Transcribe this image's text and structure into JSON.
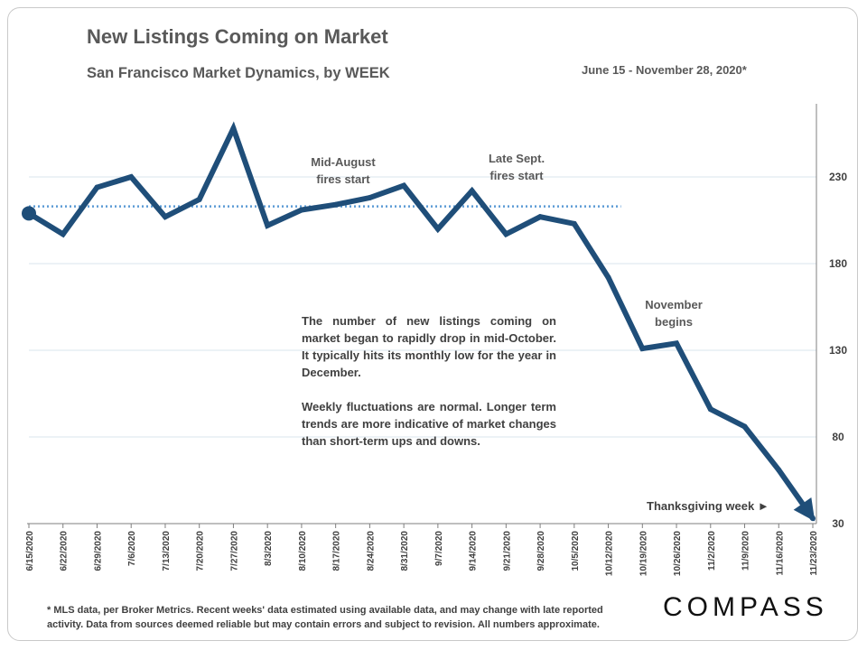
{
  "title": "New Listings Coming on Market",
  "subtitle": "San Francisco Market Dynamics, by WEEK",
  "date_range": "June 15 - November 28, 2020*",
  "annotations": {
    "aug_fires": [
      "Mid-August",
      "fires start"
    ],
    "sept_fires": [
      "Late Sept.",
      "fires start"
    ],
    "november": [
      "November",
      "begins"
    ],
    "thanksgiving": "Thanksgiving week ►"
  },
  "note": {
    "p1": "The number of new listings coming on market began to rapidly drop in mid-October. It typically hits its monthly low for the year in December.",
    "p2": "Weekly fluctuations are normal. Longer term trends are more indicative of market changes than short-term ups and downs."
  },
  "footnote": {
    "line1": "* MLS data, per Broker Metrics. Recent weeks' data estimated using available data, and may change with late reported",
    "line2": "activity. Data from sources deemed reliable but may contain errors and subject to revision. All numbers approximate."
  },
  "logo": "COMPASS",
  "colors": {
    "line": "#1f4e79",
    "trend": "#5b9bd5",
    "grid": "#d9e4ee"
  },
  "chart_data": {
    "type": "line",
    "x": [
      "6/15/2020",
      "6/22/2020",
      "6/29/2020",
      "7/6/2020",
      "7/13/2020",
      "7/20/2020",
      "7/27/2020",
      "8/3/2020",
      "8/10/2020",
      "8/17/2020",
      "8/24/2020",
      "8/31/2020",
      "9/7/2020",
      "9/14/2020",
      "9/21/2020",
      "9/28/2020",
      "10/5/2020",
      "10/12/2020",
      "10/19/2020",
      "10/26/2020",
      "11/2/2020",
      "11/9/2020",
      "11/16/2020",
      "11/23/2020"
    ],
    "series": [
      {
        "values": [
          209,
          197,
          224,
          230,
          207,
          217,
          258,
          202,
          211,
          214,
          218,
          225,
          200,
          222,
          197,
          207,
          203,
          172,
          131,
          134,
          96,
          86,
          61,
          33
        ]
      }
    ],
    "trendline": {
      "x_start": "6/15/2020",
      "x_end": "10/12/2020",
      "value": 213
    },
    "yticks": [
      30,
      80,
      130,
      180,
      230
    ],
    "ylim": [
      30,
      280
    ],
    "grid": true,
    "legend": "none"
  }
}
